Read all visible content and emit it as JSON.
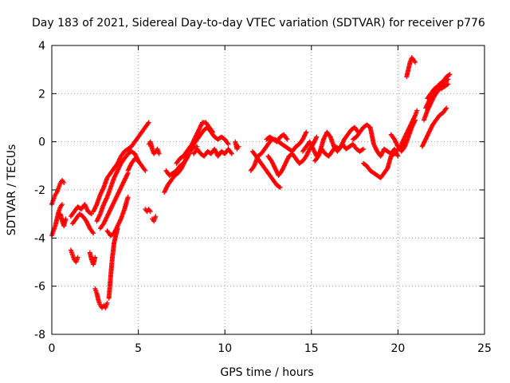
{
  "chart_data": {
    "type": "scatter",
    "title": "Day 183 of 2021, Sidereal Day-to-day VTEC variation (SDTVAR) for receiver p776",
    "xlabel": "GPS time / hours",
    "ylabel": "SDTVAR / TECUs",
    "xlim": [
      0,
      25
    ],
    "ylim": [
      -8,
      4
    ],
    "xticks": [
      "0",
      "5",
      "10",
      "15",
      "20",
      "25"
    ],
    "yticks": [
      "-8",
      "-6",
      "-4",
      "-2",
      "0",
      "2",
      "4"
    ],
    "grid": true,
    "marker": "plus",
    "colors": {
      "series": "#ff0000",
      "grid": "#a0a0a0",
      "axes": "#000000"
    },
    "series": [
      {
        "name": "p776",
        "segments": [
          {
            "x": [
              0.0,
              0.1,
              0.2,
              0.3,
              0.4,
              0.5,
              0.6,
              0.7
            ],
            "y": [
              -2.6,
              -2.4,
              -2.2,
              -2.1,
              -1.9,
              -1.7,
              -1.6,
              -1.7
            ]
          },
          {
            "x": [
              0.0,
              0.1,
              0.2,
              0.3,
              0.4,
              0.5,
              0.6
            ],
            "y": [
              -3.9,
              -3.7,
              -3.5,
              -3.2,
              -2.9,
              -2.7,
              -2.6
            ]
          },
          {
            "x": [
              0.5,
              0.6,
              0.7,
              0.8
            ],
            "y": [
              -3.0,
              -3.3,
              -3.5,
              -3.2
            ]
          },
          {
            "x": [
              1.1,
              1.2,
              1.3,
              1.4,
              1.5
            ],
            "y": [
              -4.5,
              -4.7,
              -4.9,
              -5.0,
              -4.8
            ]
          },
          {
            "x": [
              1.1,
              1.3,
              1.5,
              1.7,
              1.9,
              2.1,
              2.3
            ],
            "y": [
              -3.1,
              -2.9,
              -2.7,
              -2.8,
              -2.6,
              -2.9,
              -3.0
            ]
          },
          {
            "x": [
              1.2,
              1.4,
              1.6,
              1.8,
              2.0,
              2.2,
              2.4
            ],
            "y": [
              -3.4,
              -3.2,
              -3.0,
              -3.1,
              -3.3,
              -3.6,
              -3.8
            ]
          },
          {
            "x": [
              2.2,
              2.3,
              2.4,
              2.5
            ],
            "y": [
              -4.6,
              -4.9,
              -5.1,
              -4.8
            ]
          },
          {
            "x": [
              2.5,
              2.6,
              2.7,
              2.8,
              2.9,
              3.0,
              3.1,
              3.2
            ],
            "y": [
              -6.1,
              -6.3,
              -6.6,
              -6.8,
              -6.9,
              -6.8,
              -6.9,
              -6.7
            ]
          },
          {
            "x": [
              2.4,
              2.6,
              2.8,
              3.0,
              3.2,
              3.4,
              3.6,
              3.8,
              4.0,
              4.2,
              4.4,
              4.6,
              4.8,
              5.0,
              5.2,
              5.4,
              5.6
            ],
            "y": [
              -2.9,
              -2.6,
              -2.2,
              -1.9,
              -1.5,
              -1.3,
              -1.1,
              -0.9,
              -0.6,
              -0.4,
              -0.3,
              -0.2,
              0.0,
              0.2,
              0.4,
              0.6,
              0.8
            ]
          },
          {
            "x": [
              2.6,
              2.8,
              3.0,
              3.2,
              3.4,
              3.6,
              3.8,
              4.0,
              4.2,
              4.4,
              4.6,
              4.8,
              5.0
            ],
            "y": [
              -3.3,
              -3.0,
              -2.6,
              -2.3,
              -1.9,
              -1.5,
              -1.2,
              -0.9,
              -0.7,
              -0.5,
              -0.4,
              -0.5,
              -0.8
            ]
          },
          {
            "x": [
              2.8,
              3.0,
              3.2,
              3.4,
              3.6,
              3.8,
              4.0,
              4.2,
              4.4
            ],
            "y": [
              -3.6,
              -3.4,
              -3.1,
              -2.8,
              -2.5,
              -2.2,
              -1.9,
              -1.6,
              -1.3
            ]
          },
          {
            "x": [
              3.2,
              3.4,
              3.6,
              3.8,
              4.0,
              4.2,
              4.4
            ],
            "y": [
              -3.7,
              -3.9,
              -3.8,
              -3.5,
              -3.2,
              -2.8,
              -2.3
            ]
          },
          {
            "x": [
              3.3,
              3.4,
              3.5,
              3.6,
              3.7,
              3.8
            ],
            "y": [
              -6.5,
              -5.6,
              -4.8,
              -4.2,
              -3.9,
              -3.6
            ]
          },
          {
            "x": [
              4.4,
              4.6,
              4.8,
              5.0,
              5.2,
              5.4
            ],
            "y": [
              -1.2,
              -0.9,
              -0.7,
              -0.8,
              -1.0,
              -1.2
            ]
          },
          {
            "x": [
              5.4,
              5.5,
              5.6,
              5.7
            ],
            "y": [
              -2.8,
              -2.9,
              -2.8,
              -2.9
            ]
          },
          {
            "x": [
              5.8,
              5.9,
              6.0
            ],
            "y": [
              -3.2,
              -3.3,
              -3.1
            ]
          },
          {
            "x": [
              5.6,
              5.7,
              5.8,
              5.9,
              6.0,
              6.1,
              6.2
            ],
            "y": [
              -0.1,
              0.0,
              -0.3,
              -0.5,
              -0.4,
              -0.3,
              -0.5
            ]
          },
          {
            "x": [
              6.5,
              6.7,
              6.9,
              7.1,
              7.3,
              7.5,
              7.7,
              7.9,
              8.1,
              8.3,
              8.5,
              8.7,
              8.9,
              9.1,
              9.3
            ],
            "y": [
              -2.1,
              -1.8,
              -1.6,
              -1.4,
              -1.3,
              -1.1,
              -0.8,
              -0.4,
              -0.1,
              0.2,
              0.5,
              0.8,
              0.8,
              0.6,
              0.4
            ]
          },
          {
            "x": [
              6.6,
              6.8,
              7.0,
              7.2,
              7.4,
              7.6,
              7.8,
              8.0,
              8.2,
              8.4
            ],
            "y": [
              -1.2,
              -1.4,
              -1.3,
              -1.2,
              -1.0,
              -0.9,
              -0.7,
              -0.4,
              -0.2,
              -0.2
            ]
          },
          {
            "x": [
              7.2,
              7.4,
              7.6,
              7.8,
              8.0,
              8.2,
              8.4,
              8.6,
              8.8,
              9.0,
              9.2,
              9.4,
              9.6,
              9.8,
              10.0,
              10.2
            ],
            "y": [
              -0.9,
              -0.7,
              -0.6,
              -0.4,
              -0.2,
              -0.1,
              0.1,
              0.3,
              0.5,
              0.6,
              0.4,
              0.2,
              0.1,
              0.2,
              0.1,
              -0.1
            ]
          },
          {
            "x": [
              8.2,
              8.4,
              8.6,
              8.8,
              9.0,
              9.2,
              9.4,
              9.6,
              9.8,
              10.0,
              10.2,
              10.4
            ],
            "y": [
              -0.5,
              -0.3,
              -0.5,
              -0.6,
              -0.4,
              -0.5,
              -0.3,
              -0.6,
              -0.4,
              -0.5,
              -0.3,
              -0.5
            ]
          },
          {
            "x": [
              10.6,
              10.7,
              10.8
            ],
            "y": [
              0.0,
              -0.3,
              -0.2
            ]
          },
          {
            "x": [
              11.5,
              11.7,
              11.9,
              12.1,
              12.3,
              12.5,
              12.7,
              12.9,
              13.1,
              13.3,
              13.5,
              13.7,
              13.9,
              14.1,
              14.3,
              14.5,
              14.7
            ],
            "y": [
              -1.2,
              -1.0,
              -0.6,
              -0.5,
              -0.3,
              -0.1,
              0.1,
              0.1,
              0.0,
              -0.1,
              -0.2,
              -0.3,
              -0.4,
              -0.2,
              -0.1,
              0.1,
              0.4
            ]
          },
          {
            "x": [
              11.6,
              11.8,
              12.0,
              12.2,
              12.4,
              12.6,
              12.8,
              13.0,
              13.2
            ],
            "y": [
              -0.4,
              -0.6,
              -0.8,
              -1.0,
              -1.2,
              -1.4,
              -1.6,
              -1.8,
              -1.9
            ]
          },
          {
            "x": [
              12.5,
              12.7,
              12.9,
              13.1,
              13.3,
              13.5,
              13.7,
              13.9,
              14.1,
              14.3,
              14.5,
              14.7,
              14.9,
              15.1,
              15.3
            ],
            "y": [
              -0.6,
              -0.8,
              -1.1,
              -1.4,
              -1.2,
              -0.9,
              -0.6,
              -0.5,
              -0.7,
              -0.9,
              -0.8,
              -0.6,
              -0.3,
              -0.1,
              0.2
            ]
          },
          {
            "x": [
              12.4,
              12.6,
              12.8,
              13.0,
              13.2,
              13.4,
              13.6
            ],
            "y": [
              0.1,
              0.2,
              0.1,
              0.0,
              0.2,
              0.3,
              0.1
            ]
          },
          {
            "x": [
              14.5,
              14.7,
              14.9,
              15.1,
              15.3,
              15.5,
              15.7,
              15.9,
              16.1,
              16.3,
              16.5,
              16.7,
              16.9,
              17.1,
              17.3,
              17.5,
              17.7
            ],
            "y": [
              -0.4,
              -0.2,
              0.0,
              -0.3,
              -0.6,
              -0.4,
              0.1,
              0.4,
              0.2,
              -0.2,
              -0.4,
              -0.2,
              0.1,
              0.3,
              0.5,
              0.6,
              0.4
            ]
          },
          {
            "x": [
              15.2,
              15.4,
              15.6,
              15.8,
              16.0,
              16.2,
              16.4,
              16.6,
              16.8,
              17.0,
              17.2,
              17.4,
              17.6,
              17.8,
              18.0
            ],
            "y": [
              -0.8,
              -0.6,
              -0.3,
              -0.5,
              -0.6,
              -0.4,
              -0.2,
              -0.3,
              -0.1,
              -0.3,
              -0.2,
              -0.1,
              -0.3,
              -0.4,
              -0.3
            ]
          },
          {
            "x": [
              17.4,
              17.6,
              17.8,
              18.0,
              18.2,
              18.4,
              18.6,
              18.8,
              19.0,
              19.2,
              19.4,
              19.6,
              19.8,
              20.0
            ],
            "y": [
              0.1,
              0.2,
              0.4,
              0.6,
              0.7,
              0.6,
              -0.1,
              -0.4,
              -0.6,
              -0.3,
              -0.4,
              -0.5,
              -0.3,
              -0.6
            ]
          },
          {
            "x": [
              18.0,
              18.2,
              18.4,
              18.6,
              18.8,
              19.0,
              19.2,
              19.4,
              19.6,
              19.8,
              20.0,
              20.2,
              20.4
            ],
            "y": [
              -0.9,
              -1.0,
              -1.2,
              -1.3,
              -1.4,
              -1.5,
              -1.3,
              -1.1,
              -0.6,
              -0.5,
              -0.3,
              -0.2,
              0.0
            ]
          },
          {
            "x": [
              19.6,
              19.8,
              20.0,
              20.2,
              20.4,
              20.6,
              20.8,
              21.0
            ],
            "y": [
              0.3,
              0.1,
              -0.2,
              -0.4,
              -0.2,
              0.2,
              0.6,
              0.9
            ]
          },
          {
            "x": [
              20.2,
              20.4,
              20.6,
              20.8,
              21.0,
              21.1
            ],
            "y": [
              -0.1,
              0.2,
              0.5,
              0.8,
              1.1,
              1.3
            ]
          },
          {
            "x": [
              20.5,
              20.6,
              20.7,
              20.8,
              20.9,
              21.0
            ],
            "y": [
              2.7,
              3.0,
              3.3,
              3.5,
              3.4,
              3.3
            ]
          },
          {
            "x": [
              21.4,
              21.6,
              21.8,
              22.0,
              22.2,
              22.4,
              22.6,
              22.8
            ],
            "y": [
              -0.2,
              0.1,
              0.4,
              0.7,
              0.9,
              1.1,
              1.2,
              1.4
            ]
          },
          {
            "x": [
              21.5,
              21.7,
              21.9,
              22.1,
              22.3,
              22.5,
              22.7,
              22.9
            ],
            "y": [
              0.9,
              1.3,
              1.6,
              1.9,
              2.1,
              2.3,
              2.5,
              2.6
            ]
          },
          {
            "x": [
              21.6,
              21.8,
              22.0,
              22.2,
              22.4,
              22.6,
              22.8,
              23.0
            ],
            "y": [
              1.4,
              1.7,
              2.0,
              2.2,
              2.4,
              2.5,
              2.7,
              2.8
            ]
          },
          {
            "x": [
              21.7,
              21.9,
              22.1,
              22.3,
              22.5,
              22.7,
              22.9
            ],
            "y": [
              1.8,
              2.0,
              2.2,
              2.3,
              2.2,
              2.3,
              2.4
            ]
          }
        ]
      }
    ]
  }
}
